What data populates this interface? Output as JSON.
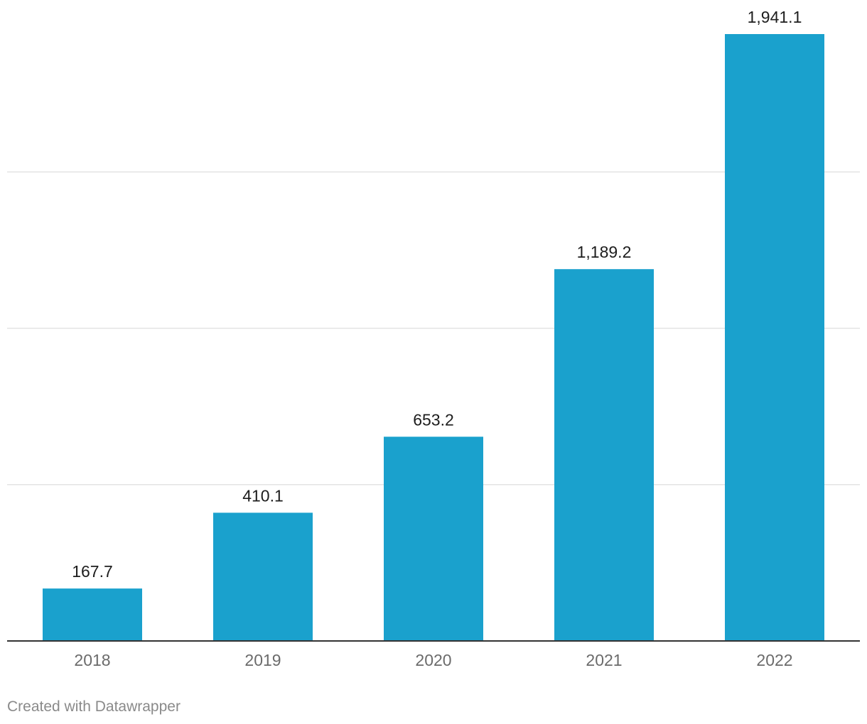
{
  "chart_data": {
    "type": "bar",
    "categories": [
      "2018",
      "2019",
      "2020",
      "2021",
      "2022"
    ],
    "values": [
      167.7,
      410.1,
      653.2,
      1189.2,
      1941.1
    ],
    "value_labels": [
      "167.7",
      "410.1",
      "653.2",
      "1,189.2",
      "1,941.1"
    ],
    "title": "",
    "xlabel": "",
    "ylabel": "",
    "ylim": [
      0,
      1941.1
    ],
    "gridline_values": [
      500,
      1000,
      1500
    ],
    "grid": true,
    "colors": {
      "bar": "#1aa1cd",
      "gridline": "#e3e3e3",
      "baseline": "#333333"
    }
  },
  "footer": {
    "credit": "Created with Datawrapper"
  }
}
